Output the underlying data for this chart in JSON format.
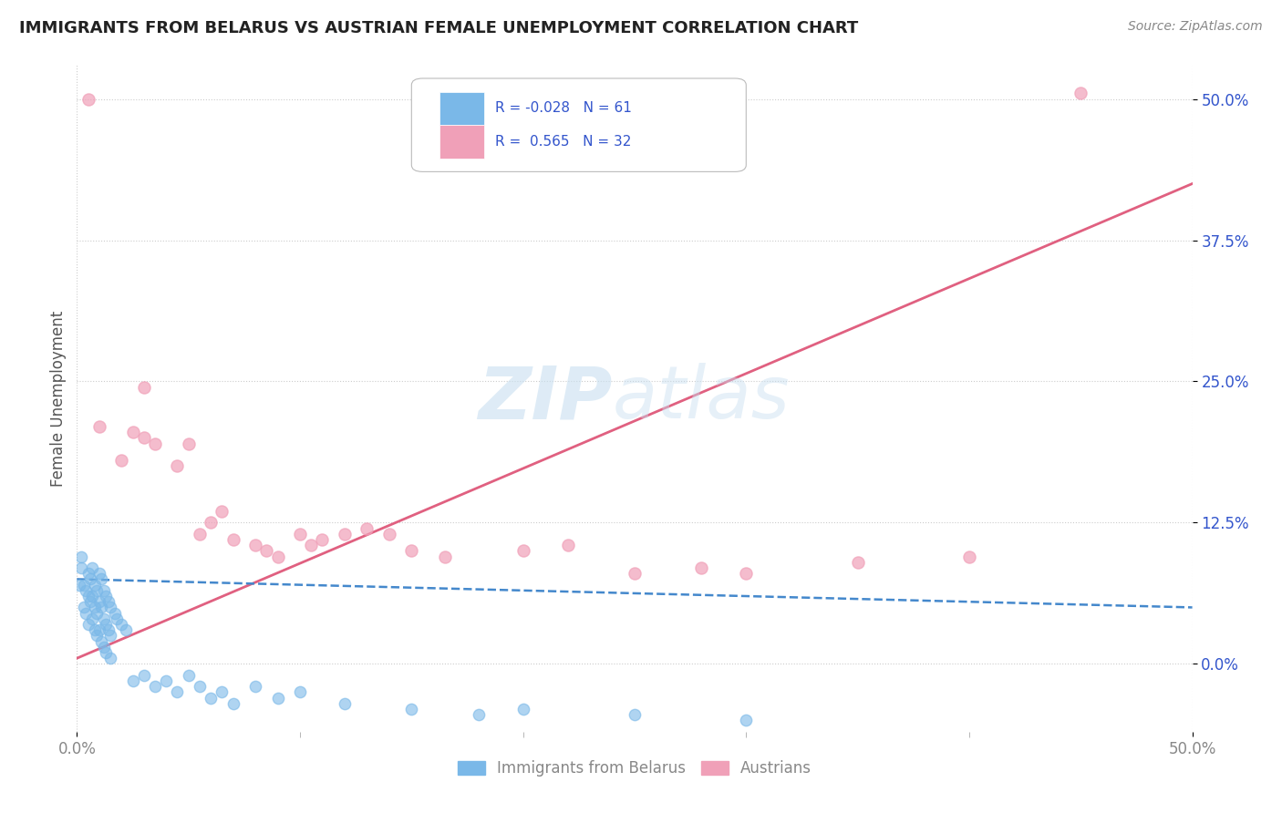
{
  "title": "IMMIGRANTS FROM BELARUS VS AUSTRIAN FEMALE UNEMPLOYMENT CORRELATION CHART",
  "source": "Source: ZipAtlas.com",
  "ylabel": "Female Unemployment",
  "ytick_vals": [
    0.0,
    12.5,
    25.0,
    37.5,
    50.0
  ],
  "xrange": [
    0.0,
    50.0
  ],
  "yrange": [
    -6.0,
    53.0
  ],
  "color_blue": "#7ab8e8",
  "color_pink": "#f0a0b8",
  "color_blue_line": "#4488cc",
  "color_pink_line": "#e06080",
  "scatter_blue": [
    [
      0.1,
      7.0
    ],
    [
      0.2,
      9.5
    ],
    [
      0.2,
      8.5
    ],
    [
      0.3,
      7.0
    ],
    [
      0.3,
      5.0
    ],
    [
      0.4,
      6.5
    ],
    [
      0.4,
      4.5
    ],
    [
      0.5,
      8.0
    ],
    [
      0.5,
      6.0
    ],
    [
      0.5,
      3.5
    ],
    [
      0.6,
      7.5
    ],
    [
      0.6,
      5.5
    ],
    [
      0.7,
      8.5
    ],
    [
      0.7,
      6.0
    ],
    [
      0.7,
      4.0
    ],
    [
      0.8,
      7.0
    ],
    [
      0.8,
      5.0
    ],
    [
      0.8,
      3.0
    ],
    [
      0.9,
      6.5
    ],
    [
      0.9,
      4.5
    ],
    [
      0.9,
      2.5
    ],
    [
      1.0,
      8.0
    ],
    [
      1.0,
      5.5
    ],
    [
      1.0,
      3.0
    ],
    [
      1.1,
      7.5
    ],
    [
      1.1,
      5.0
    ],
    [
      1.1,
      2.0
    ],
    [
      1.2,
      6.5
    ],
    [
      1.2,
      4.0
    ],
    [
      1.2,
      1.5
    ],
    [
      1.3,
      6.0
    ],
    [
      1.3,
      3.5
    ],
    [
      1.3,
      1.0
    ],
    [
      1.4,
      5.5
    ],
    [
      1.4,
      3.0
    ],
    [
      1.5,
      5.0
    ],
    [
      1.5,
      2.5
    ],
    [
      1.5,
      0.5
    ],
    [
      1.7,
      4.5
    ],
    [
      1.8,
      4.0
    ],
    [
      2.0,
      3.5
    ],
    [
      2.2,
      3.0
    ],
    [
      2.5,
      -1.5
    ],
    [
      3.0,
      -1.0
    ],
    [
      3.5,
      -2.0
    ],
    [
      4.0,
      -1.5
    ],
    [
      4.5,
      -2.5
    ],
    [
      5.0,
      -1.0
    ],
    [
      5.5,
      -2.0
    ],
    [
      6.0,
      -3.0
    ],
    [
      6.5,
      -2.5
    ],
    [
      7.0,
      -3.5
    ],
    [
      8.0,
      -2.0
    ],
    [
      9.0,
      -3.0
    ],
    [
      10.0,
      -2.5
    ],
    [
      12.0,
      -3.5
    ],
    [
      15.0,
      -4.0
    ],
    [
      18.0,
      -4.5
    ],
    [
      20.0,
      -4.0
    ],
    [
      25.0,
      -4.5
    ],
    [
      30.0,
      -5.0
    ]
  ],
  "scatter_pink": [
    [
      0.5,
      50.0
    ],
    [
      1.0,
      21.0
    ],
    [
      2.0,
      18.0
    ],
    [
      2.5,
      20.5
    ],
    [
      3.0,
      20.0
    ],
    [
      3.5,
      19.5
    ],
    [
      4.5,
      17.5
    ],
    [
      5.0,
      19.5
    ],
    [
      5.5,
      11.5
    ],
    [
      6.0,
      12.5
    ],
    [
      6.5,
      13.5
    ],
    [
      7.0,
      11.0
    ],
    [
      8.0,
      10.5
    ],
    [
      8.5,
      10.0
    ],
    [
      9.0,
      9.5
    ],
    [
      10.0,
      11.5
    ],
    [
      10.5,
      10.5
    ],
    [
      11.0,
      11.0
    ],
    [
      12.0,
      11.5
    ],
    [
      13.0,
      12.0
    ],
    [
      14.0,
      11.5
    ],
    [
      15.0,
      10.0
    ],
    [
      16.5,
      9.5
    ],
    [
      20.0,
      10.0
    ],
    [
      22.0,
      10.5
    ],
    [
      25.0,
      8.0
    ],
    [
      28.0,
      8.5
    ],
    [
      30.0,
      8.0
    ],
    [
      35.0,
      9.0
    ],
    [
      40.0,
      9.5
    ],
    [
      45.0,
      50.5
    ],
    [
      3.0,
      24.5
    ]
  ],
  "blue_line_x": [
    0.0,
    50.0
  ],
  "blue_line_y": [
    7.5,
    5.0
  ],
  "pink_line_x": [
    0.0,
    50.0
  ],
  "pink_line_y": [
    0.5,
    42.5
  ]
}
